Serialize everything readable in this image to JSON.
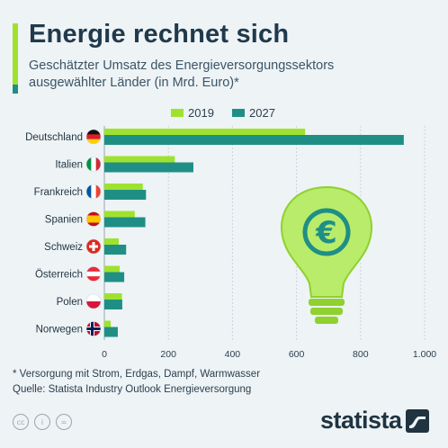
{
  "header": {
    "title": "Energie rechnet sich",
    "subtitle": "Geschätzter Umsatz des Energieversorgungssektors ausgewählter Länder (in Mrd. Euro)*"
  },
  "footer": {
    "note": "* Versorgung mit Strom, Erdgas, Dampf, Warmwasser",
    "source": "Quelle: Statista Industry Outlook Energieversorgung",
    "brand": "statista"
  },
  "colors": {
    "series_2019": "#9fe22e",
    "series_2027": "#1f8f86",
    "title": "#203a4c",
    "bulb": "#b8ec6a"
  },
  "icons": [
    "cc-icon",
    "attribution-icon",
    "equals-icon",
    "lightbulb-euro-icon",
    "statista-logo-icon"
  ],
  "chart_data": {
    "type": "bar",
    "orientation": "horizontal",
    "categories": [
      "Deutschland",
      "Italien",
      "Frankreich",
      "Spanien",
      "Schweiz",
      "Österreich",
      "Polen",
      "Norwegen"
    ],
    "flags": [
      "de",
      "it",
      "fr",
      "es",
      "ch",
      "at",
      "pl",
      "no"
    ],
    "series": [
      {
        "name": "2019",
        "values": [
          627,
          220,
          120,
          95,
          45,
          48,
          55,
          20
        ]
      },
      {
        "name": "2027",
        "values": [
          935,
          278,
          130,
          128,
          68,
          62,
          56,
          42
        ]
      }
    ],
    "xlim": [
      0,
      1000
    ],
    "xticks": [
      "0",
      "200",
      "400",
      "600",
      "800",
      "1.000"
    ],
    "xtick_values": [
      0,
      200,
      400,
      600,
      800,
      1000
    ],
    "legend_position": "top",
    "grid": true
  }
}
